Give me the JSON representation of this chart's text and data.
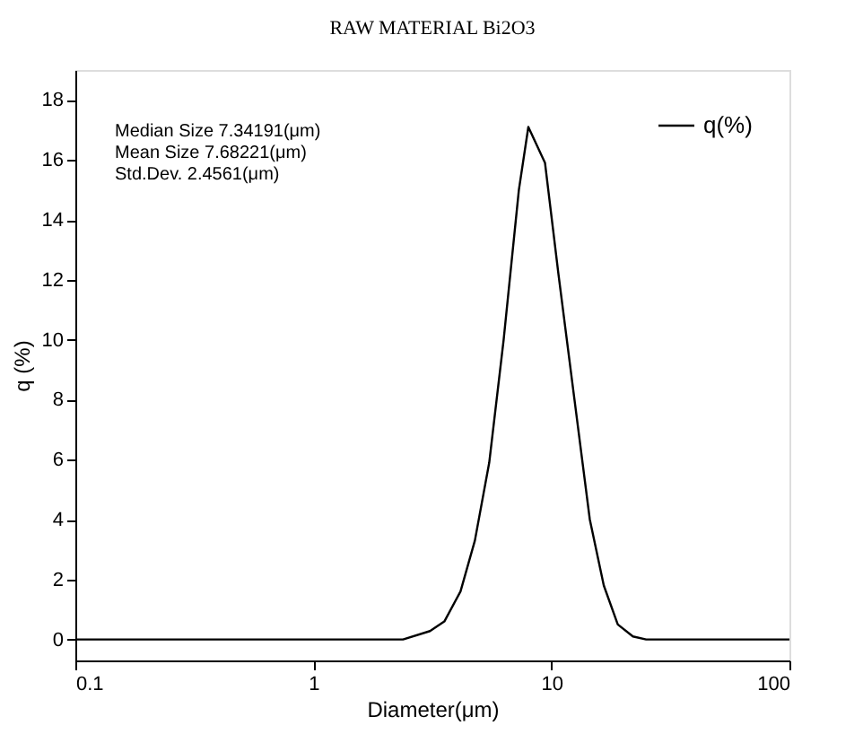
{
  "chart_data": {
    "type": "line",
    "title": "RAW MATERIAL Bi2O3",
    "xlabel": "Diameter(μm)",
    "ylabel": "q (%)",
    "log": "x",
    "grid": false,
    "legend": "top right",
    "marker": "none",
    "line_style": "solid",
    "xlim": [
      0.1,
      100
    ],
    "xticks": [
      0.1,
      1,
      10,
      100
    ],
    "ylim": [
      -0.7,
      19
    ],
    "yticks": [
      0,
      2,
      4,
      6,
      8,
      10,
      12,
      14,
      16,
      18
    ],
    "annotations": [
      "Median Size    7.34191(μm)",
      "Mean Size      7.68221(μm)",
      "Std.Dev.         2.4561(μm)"
    ],
    "series": [
      {
        "name": "q(%)",
        "color": "#000000",
        "x": [
          0.1,
          2.38,
          3.09,
          3.55,
          4.15,
          4.77,
          5.48,
          6.3,
          7.3,
          8.0,
          9.4,
          10.7,
          12.5,
          14.5,
          16.6,
          19.0,
          22.0,
          25.0,
          100
        ],
        "values": [
          0,
          0,
          0.28,
          0.6,
          1.6,
          3.3,
          5.9,
          10.0,
          15.0,
          17.1,
          15.9,
          12.2,
          8.0,
          4.0,
          1.8,
          0.5,
          0.1,
          0,
          0
        ]
      }
    ]
  }
}
